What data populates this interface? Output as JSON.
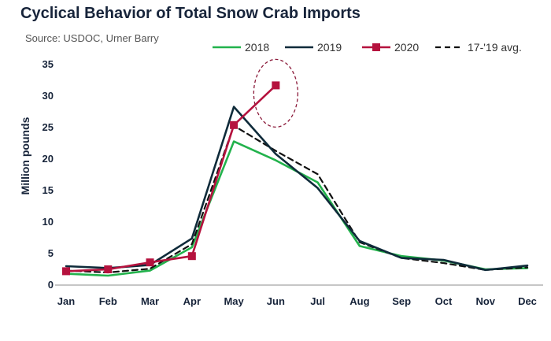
{
  "chart_data": {
    "type": "line",
    "title": "Cyclical Behavior of Total Snow Crab Imports",
    "subtitle": "Source: USDOC, Urner Barry",
    "xlabel": "",
    "ylabel": "Million pounds",
    "categories": [
      "Jan",
      "Feb",
      "Mar",
      "Apr",
      "May",
      "Jun",
      "Jul",
      "Aug",
      "Sep",
      "Oct",
      "Nov",
      "Dec"
    ],
    "ylim": [
      0,
      35
    ],
    "yticks": [
      0,
      5,
      10,
      15,
      20,
      25,
      30,
      35
    ],
    "grid": false,
    "legend_position": "top-right",
    "series": [
      {
        "name": "2018",
        "color": "#22b24c",
        "style": "solid",
        "values": [
          1.8,
          1.5,
          2.3,
          6.0,
          22.8,
          19.8,
          16.3,
          6.2,
          4.6,
          3.9,
          2.5,
          2.7
        ]
      },
      {
        "name": "2019",
        "color": "#0f2b3a",
        "style": "solid",
        "values": [
          3.0,
          2.7,
          3.2,
          7.4,
          28.3,
          20.8,
          15.4,
          7.0,
          4.3,
          4.0,
          2.4,
          3.1
        ]
      },
      {
        "name": "2020",
        "color": "#b5123e",
        "style": "solid-square",
        "values": [
          2.2,
          2.5,
          3.6,
          4.6,
          25.4,
          31.7,
          null,
          null,
          null,
          null,
          null,
          null
        ]
      },
      {
        "name": "17-'19 avg.",
        "color": "#111111",
        "style": "dashed",
        "values": [
          2.3,
          2.0,
          2.6,
          6.5,
          25.3,
          21.3,
          17.6,
          6.8,
          4.3,
          3.5,
          2.4,
          2.8
        ]
      }
    ],
    "annotations": [
      {
        "type": "dashed-ellipse",
        "color": "#8b1a3a",
        "around": {
          "x": "Jun",
          "y": 31.7
        }
      }
    ]
  }
}
